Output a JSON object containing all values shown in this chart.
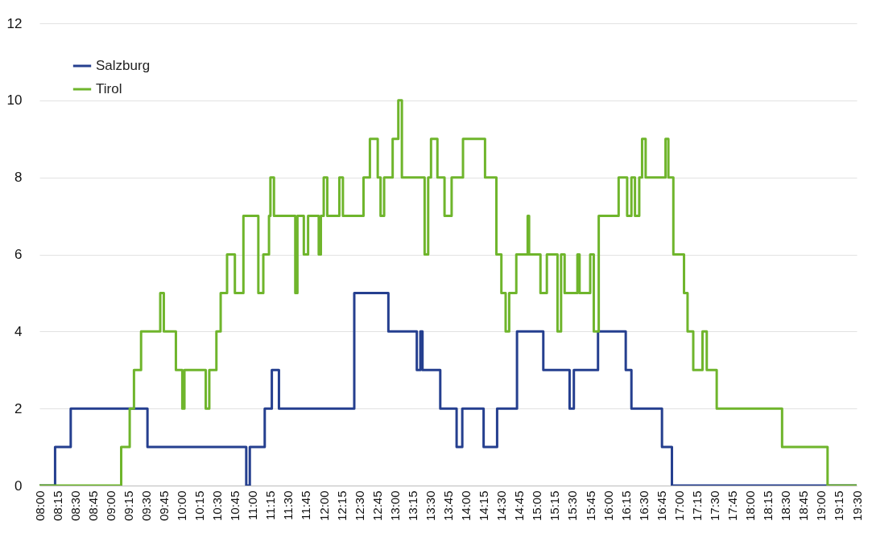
{
  "chart_data": {
    "type": "step",
    "xlim": [
      8,
      19.5
    ],
    "ylim": [
      0,
      12
    ],
    "yticks": [
      0,
      2,
      4,
      6,
      8,
      10,
      12
    ],
    "grid": "y",
    "legend": "top left",
    "line_style": "solid",
    "marker": "none",
    "xticks": [
      {
        "value": 8,
        "label": "08:00"
      },
      {
        "value": 8.25,
        "label": "08:15"
      },
      {
        "value": 8.5,
        "label": "08:30"
      },
      {
        "value": 8.75,
        "label": "08:45"
      },
      {
        "value": 9,
        "label": "09:00"
      },
      {
        "value": 9.25,
        "label": "09:15"
      },
      {
        "value": 9.5,
        "label": "09:30"
      },
      {
        "value": 9.75,
        "label": "09:45"
      },
      {
        "value": 10,
        "label": "10:00"
      },
      {
        "value": 10.25,
        "label": "10:15"
      },
      {
        "value": 10.5,
        "label": "10:30"
      },
      {
        "value": 10.75,
        "label": "10:45"
      },
      {
        "value": 11,
        "label": "11:00"
      },
      {
        "value": 11.25,
        "label": "11:15"
      },
      {
        "value": 11.5,
        "label": "11:30"
      },
      {
        "value": 11.75,
        "label": "11:45"
      },
      {
        "value": 12,
        "label": "12:00"
      },
      {
        "value": 12.25,
        "label": "12:15"
      },
      {
        "value": 12.5,
        "label": "12:30"
      },
      {
        "value": 12.75,
        "label": "12:45"
      },
      {
        "value": 13,
        "label": "13:00"
      },
      {
        "value": 13.25,
        "label": "13:15"
      },
      {
        "value": 13.5,
        "label": "13:30"
      },
      {
        "value": 13.75,
        "label": "13:45"
      },
      {
        "value": 14,
        "label": "14:00"
      },
      {
        "value": 14.25,
        "label": "14:15"
      },
      {
        "value": 14.5,
        "label": "14:30"
      },
      {
        "value": 14.75,
        "label": "14:45"
      },
      {
        "value": 15,
        "label": "15:00"
      },
      {
        "value": 15.25,
        "label": "15:15"
      },
      {
        "value": 15.5,
        "label": "15:30"
      },
      {
        "value": 15.75,
        "label": "15:45"
      },
      {
        "value": 16,
        "label": "16:00"
      },
      {
        "value": 16.25,
        "label": "16:15"
      },
      {
        "value": 16.5,
        "label": "16:30"
      },
      {
        "value": 16.75,
        "label": "16:45"
      },
      {
        "value": 17,
        "label": "17:00"
      },
      {
        "value": 17.25,
        "label": "17:15"
      },
      {
        "value": 17.5,
        "label": "17:30"
      },
      {
        "value": 17.75,
        "label": "17:45"
      },
      {
        "value": 18,
        "label": "18:00"
      },
      {
        "value": 18.25,
        "label": "18:15"
      },
      {
        "value": 18.5,
        "label": "18:30"
      },
      {
        "value": 18.75,
        "label": "18:45"
      },
      {
        "value": 19,
        "label": "19:00"
      },
      {
        "value": 19.25,
        "label": "19:15"
      },
      {
        "value": 19.5,
        "label": "19:30"
      }
    ],
    "series": [
      {
        "name": "Salzburg",
        "color": "#253f8f",
        "x": [
          8,
          8.22,
          8.44,
          9.52,
          10.91,
          10.96,
          11.17,
          11.27,
          11.37,
          12.43,
          12.91,
          13.31,
          13.36,
          13.39,
          13.64,
          13.87,
          13.95,
          14.25,
          14.44,
          14.72,
          15.09,
          15.46,
          15.52,
          15.86,
          16.25,
          16.33,
          16.76,
          16.9,
          19.5
        ],
        "values": [
          0,
          1,
          2,
          1,
          0,
          1,
          2,
          3,
          2,
          5,
          4,
          3,
          4,
          3,
          2,
          1,
          2,
          1,
          2,
          4,
          3,
          2,
          3,
          4,
          3,
          2,
          1,
          0,
          0
        ]
      },
      {
        "name": "Tirol",
        "color": "#6fb52c",
        "x": [
          8,
          9.15,
          9.27,
          9.33,
          9.43,
          9.7,
          9.75,
          9.92,
          10.01,
          10.04,
          10.34,
          10.39,
          10.49,
          10.55,
          10.64,
          10.75,
          10.87,
          11.08,
          11.15,
          11.23,
          11.25,
          11.3,
          11.6,
          11.63,
          11.72,
          11.78,
          11.93,
          11.96,
          12,
          12.05,
          12.22,
          12.27,
          12.56,
          12.65,
          12.76,
          12.8,
          12.85,
          12.97,
          13.05,
          13.1,
          13.42,
          13.47,
          13.51,
          13.6,
          13.7,
          13.8,
          13.96,
          14.27,
          14.43,
          14.5,
          14.56,
          14.61,
          14.71,
          14.87,
          14.89,
          15.05,
          15.14,
          15.29,
          15.34,
          15.39,
          15.57,
          15.6,
          15.75,
          15.8,
          15.87,
          16.15,
          16.27,
          16.33,
          16.38,
          16.44,
          16.48,
          16.53,
          16.81,
          16.85,
          16.92,
          17.07,
          17.12,
          17.2,
          17.33,
          17.39,
          17.53,
          18.45,
          19.09,
          19.5
        ],
        "values": [
          0,
          1,
          2,
          3,
          4,
          5,
          4,
          3,
          2,
          3,
          2,
          3,
          4,
          5,
          6,
          5,
          7,
          5,
          6,
          7,
          8,
          7,
          5,
          7,
          6,
          7,
          6,
          7,
          8,
          7,
          8,
          7,
          8,
          9,
          8,
          7,
          8,
          9,
          10,
          8,
          6,
          8,
          9,
          8,
          7,
          8,
          9,
          8,
          6,
          5,
          4,
          5,
          6,
          7,
          6,
          5,
          6,
          4,
          6,
          5,
          6,
          5,
          6,
          4,
          7,
          8,
          7,
          8,
          7,
          8,
          9,
          8,
          9,
          8,
          6,
          5,
          4,
          3,
          4,
          3,
          2,
          1,
          0,
          0
        ]
      }
    ]
  }
}
